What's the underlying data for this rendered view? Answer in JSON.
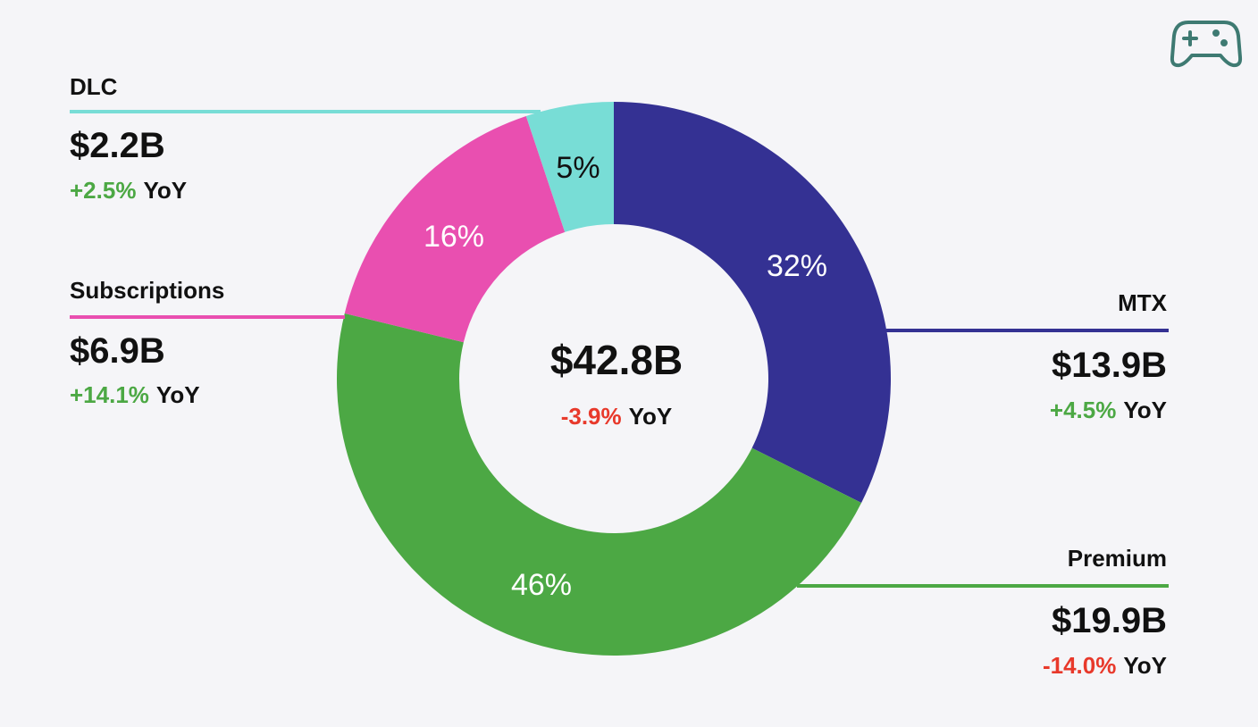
{
  "chart_data": {
    "type": "pie",
    "subtype": "donut",
    "unit": "$B",
    "slices": [
      {
        "key": "mtx",
        "name": "MTX",
        "value": 13.9,
        "value_label": "$13.9B",
        "percent_label": "32%",
        "yoy": "+4.5%",
        "yoy_sign": "positive",
        "yoy_suffix": "YoY",
        "color": "#343193"
      },
      {
        "key": "premium",
        "name": "Premium",
        "value": 19.9,
        "value_label": "$19.9B",
        "percent_label": "46%",
        "yoy": "-14.0%",
        "yoy_sign": "negative",
        "yoy_suffix": "YoY",
        "color": "#4ca844"
      },
      {
        "key": "subscriptions",
        "name": "Subscriptions",
        "value": 6.9,
        "value_label": "$6.9B",
        "percent_label": "16%",
        "yoy": "+14.1%",
        "yoy_sign": "positive",
        "yoy_suffix": "YoY",
        "color": "#e94fb0"
      },
      {
        "key": "dlc",
        "name": "DLC",
        "value": 2.2,
        "value_label": "$2.2B",
        "percent_label": "5%",
        "yoy": "+2.5%",
        "yoy_sign": "positive",
        "yoy_suffix": "YoY",
        "color": "#78ddd6"
      }
    ],
    "total": {
      "value": 42.8,
      "label": "$42.8B",
      "yoy": "-3.9%",
      "yoy_sign": "negative",
      "yoy_suffix": "YoY"
    }
  },
  "colors": {
    "positive": "#4ca844",
    "negative": "#e8392b",
    "text": "#111111",
    "icon": "#3e7a72",
    "background": "#f5f5f8"
  },
  "icons": {
    "corner": "gamepad-icon"
  }
}
